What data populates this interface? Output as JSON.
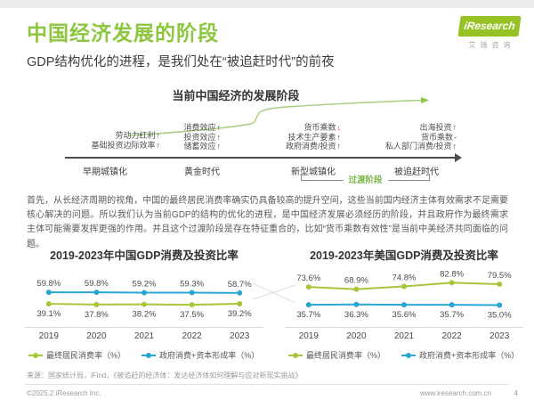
{
  "header": {
    "title": "中国经济发展的阶段",
    "subtitle": "GDP结构优化的进程，是我们处在“被追赶时代”的前夜",
    "logo": {
      "brand": "iResearch",
      "brand_cn": "艾瑞咨询"
    }
  },
  "diagram": {
    "title": "当前中国经济的发展阶段",
    "transition_label": "过渡阶段",
    "stages": [
      {
        "name": "早期城镇化",
        "factors": [
          {
            "text": "劳动力红利",
            "trend": "up"
          },
          {
            "text": "基础投资边际效率",
            "trend": "up"
          }
        ]
      },
      {
        "name": "黄金时代",
        "factors": [
          {
            "text": "消费效应",
            "trend": "up"
          },
          {
            "text": "投资效应",
            "trend": "up"
          },
          {
            "text": "储蓄效应",
            "trend": "up"
          }
        ]
      },
      {
        "name": "新型城镇化",
        "factors": [
          {
            "text": "货币乘数",
            "trend": "down"
          },
          {
            "text": "技术生产要素",
            "trend": "up"
          },
          {
            "text": "政府消费/投资",
            "trend": "up"
          }
        ]
      },
      {
        "name": "被追赶时代",
        "factors": [
          {
            "text": "出海投资",
            "trend": "up"
          },
          {
            "text": "货币乘数",
            "trend": "flat"
          },
          {
            "text": "私人部门消费/投资",
            "trend": "up"
          }
        ]
      }
    ]
  },
  "paragraph": "首先，从长经济周期的视角，中国的最终居民消费率确实仍具备较高的提升空间，这些当前国内经济主体有效需求不足需要核心解决的问题。所以我们认为当前GDP的结构的优化的进程，是中国经济发展必须经历的阶段，并且政府作为最终需求主体可能需要发挥更强的作用。并且这个过渡阶段是存在特征重合的，比如“货币乘数有效性”是当前中美经济共同面临的问题。",
  "chart_data": [
    {
      "type": "line",
      "title": "2019-2023年中国GDP消费及投资比率",
      "categories": [
        "2019",
        "2020",
        "2021",
        "2022",
        "2023"
      ],
      "series": [
        {
          "name": "最终居民消费率（%）",
          "color": "#a8c63a",
          "values": [
            39.1,
            37.8,
            38.2,
            37.5,
            39.2
          ],
          "label_side": "below"
        },
        {
          "name": "政府消费+资本形成率（%）",
          "color": "#29a7d3",
          "values": [
            59.8,
            59.8,
            59.2,
            59.3,
            58.7
          ],
          "label_side": "above"
        }
      ],
      "ylim": [
        20,
        100
      ],
      "grid": false,
      "legend_position": "bottom"
    },
    {
      "type": "line",
      "title": "2019-2023年美国GDP消费及投资比率",
      "categories": [
        "2019",
        "2020",
        "2021",
        "2022",
        "2023"
      ],
      "series": [
        {
          "name": "最终居民消费率（%）",
          "color": "#a8c63a",
          "values": [
            73.6,
            68.9,
            74.8,
            82.8,
            79.5
          ],
          "label_side": "above"
        },
        {
          "name": "政府消费+资本形成率（%）",
          "color": "#29a7d3",
          "values": [
            35.7,
            36.3,
            35.6,
            35.7,
            35.0
          ],
          "label_side": "below"
        }
      ],
      "ylim": [
        15,
        110
      ],
      "grid": false,
      "legend_position": "bottom"
    }
  ],
  "footer": {
    "source": "来源：国家统计局，iFind，《被追赶的经济体：发达经济体如何理解与应对新现实挑战》",
    "copyright": "©2025.2 iResearch Inc.",
    "website": "www.iresearch.com.cn",
    "page_number": "4"
  }
}
